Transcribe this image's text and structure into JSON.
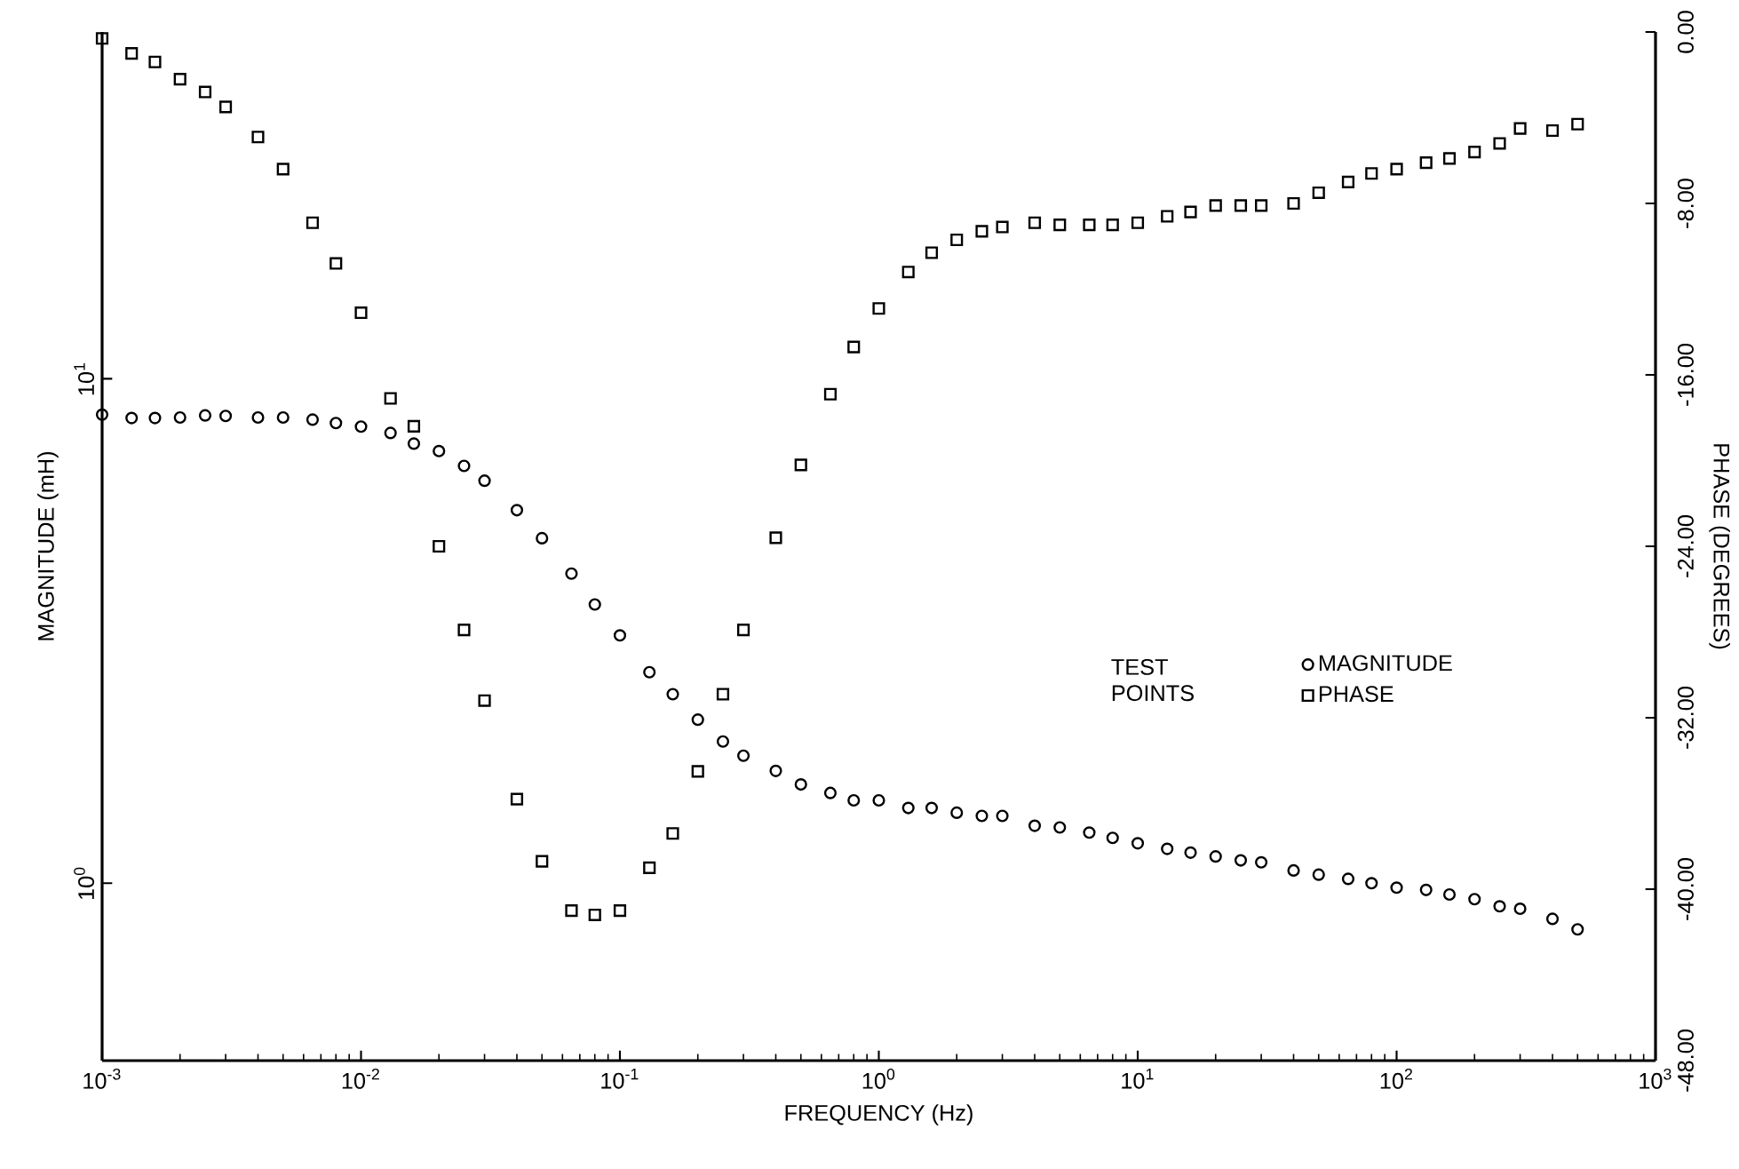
{
  "chart_data": {
    "type": "scatter",
    "xlabel": "FREQUENCY (Hz)",
    "ylabel": "MAGNITUDE (mH)",
    "y2label": "PHASE (DEGREES)",
    "legend_title": "TEST POINTS",
    "legend": "right",
    "log": "xy",
    "x": [
      0.001,
      0.0013,
      0.0016,
      0.002,
      0.0025,
      0.003,
      0.004,
      0.005,
      0.0065,
      0.008,
      0.01,
      0.013,
      0.016,
      0.02,
      0.025,
      0.03,
      0.04,
      0.05,
      0.065,
      0.08,
      0.1,
      0.13,
      0.16,
      0.2,
      0.25,
      0.3,
      0.4,
      0.5,
      0.65,
      0.8,
      1,
      1.3,
      1.6,
      2,
      2.5,
      3,
      4,
      5,
      6.5,
      8,
      10,
      13,
      16,
      20,
      25,
      30,
      40,
      50,
      65,
      80,
      100,
      130,
      160,
      200,
      250,
      300,
      400,
      500
    ],
    "series": [
      {
        "name": "MAGNITUDE",
        "color": "#000000",
        "marker": "circle",
        "values": [
          8.49,
          8.36,
          8.36,
          8.38,
          8.46,
          8.44,
          8.38,
          8.38,
          8.3,
          8.17,
          8.04,
          7.81,
          7.44,
          7.19,
          6.72,
          6.28,
          5.49,
          4.83,
          4.11,
          3.57,
          3.1,
          2.62,
          2.37,
          2.11,
          1.91,
          1.79,
          1.67,
          1.57,
          1.51,
          1.46,
          1.46,
          1.41,
          1.41,
          1.38,
          1.36,
          1.36,
          1.3,
          1.29,
          1.26,
          1.23,
          1.2,
          1.17,
          1.15,
          1.13,
          1.11,
          1.1,
          1.06,
          1.04,
          1.02,
          1.0,
          0.98,
          0.97,
          0.95,
          0.93,
          0.9,
          0.89,
          0.85,
          0.81
        ]
      },
      {
        "name": "PHASE",
        "color": "#000000",
        "marker": "square",
        "axis": "y2",
        "values": [
          -0.3,
          -1.0,
          -1.4,
          -2.2,
          -2.8,
          -3.5,
          -4.9,
          -6.4,
          -8.9,
          -10.8,
          -13.1,
          -17.1,
          -18.4,
          -24.0,
          -27.9,
          -31.2,
          -35.8,
          -38.7,
          -41.0,
          -41.2,
          -41.0,
          -39.0,
          -37.4,
          -34.5,
          -30.9,
          -27.9,
          -23.6,
          -20.2,
          -16.9,
          -14.7,
          -12.9,
          -11.2,
          -10.3,
          -9.7,
          -9.3,
          -9.1,
          -8.9,
          -9.0,
          -9.0,
          -9.0,
          -8.9,
          -8.6,
          -8.4,
          -8.1,
          -8.1,
          -8.1,
          -8.0,
          -7.5,
          -7.0,
          -6.6,
          -6.4,
          -6.1,
          -5.9,
          -5.6,
          -5.2,
          -4.5,
          -4.6,
          -4.3
        ]
      }
    ],
    "xlim": [
      0.001,
      1000
    ],
    "xticks": [
      {
        "value": 0.001,
        "label": "10$^{-3}$"
      },
      {
        "value": 0.01,
        "label": "10$^{-2}$"
      },
      {
        "value": 0.1,
        "label": "10$^{-1}$"
      },
      {
        "value": 1,
        "label": "10$^{0}$"
      },
      {
        "value": 10,
        "label": "10$^{1}$"
      },
      {
        "value": 100,
        "label": "10$^{2}$"
      },
      {
        "value": 1000,
        "label": "10$^{3}$"
      }
    ],
    "ylim": [
      0.445,
      48.7
    ],
    "yticks": [
      {
        "value": 1,
        "label": "10$^{0}$"
      },
      {
        "value": 10,
        "label": "10$^{1}$"
      }
    ],
    "y2lim": [
      -48,
      0
    ],
    "y2ticks": [
      {
        "value": -48,
        "label": "-48.00"
      },
      {
        "value": -40,
        "label": "-40.00"
      },
      {
        "value": -32,
        "label": "-32.00"
      },
      {
        "value": -24,
        "label": "-24.00"
      },
      {
        "value": -16,
        "label": "-16.00"
      },
      {
        "value": -8,
        "label": "-8.00"
      },
      {
        "value": 0,
        "label": "0.00"
      }
    ]
  }
}
